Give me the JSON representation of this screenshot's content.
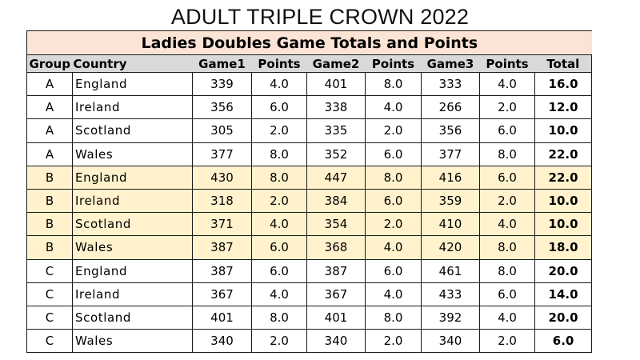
{
  "page": {
    "title": "ADULT TRIPLE CROWN 2022"
  },
  "table": {
    "caption": "Ladies Doubles Game Totals and Points",
    "headers": [
      "Group",
      "Country",
      "Game1",
      "Points",
      "Game2",
      "Points",
      "Game3",
      "Points",
      "Total"
    ],
    "rows": [
      [
        "A",
        "England",
        "339",
        "4.0",
        "401",
        "8.0",
        "333",
        "4.0",
        "16.0"
      ],
      [
        "A",
        "Ireland",
        "356",
        "6.0",
        "338",
        "4.0",
        "266",
        "2.0",
        "12.0"
      ],
      [
        "A",
        "Scotland",
        "305",
        "2.0",
        "335",
        "2.0",
        "356",
        "6.0",
        "10.0"
      ],
      [
        "A",
        "Wales",
        "377",
        "8.0",
        "352",
        "6.0",
        "377",
        "8.0",
        "22.0"
      ],
      [
        "B",
        "England",
        "430",
        "8.0",
        "447",
        "8.0",
        "416",
        "6.0",
        "22.0"
      ],
      [
        "B",
        "Ireland",
        "318",
        "2.0",
        "384",
        "6.0",
        "359",
        "2.0",
        "10.0"
      ],
      [
        "B",
        "Scotland",
        "371",
        "4.0",
        "354",
        "2.0",
        "410",
        "4.0",
        "10.0"
      ],
      [
        "B",
        "Wales",
        "387",
        "6.0",
        "368",
        "4.0",
        "420",
        "8.0",
        "18.0"
      ],
      [
        "C",
        "England",
        "387",
        "6.0",
        "387",
        "6.0",
        "461",
        "8.0",
        "20.0"
      ],
      [
        "C",
        "Ireland",
        "367",
        "4.0",
        "367",
        "4.0",
        "433",
        "6.0",
        "14.0"
      ],
      [
        "C",
        "Scotland",
        "401",
        "8.0",
        "401",
        "8.0",
        "392",
        "4.0",
        "20.0"
      ],
      [
        "C",
        "Wales",
        "340",
        "2.0",
        "340",
        "2.0",
        "340",
        "2.0",
        "6.0"
      ]
    ]
  },
  "colors": {
    "caption_fill": "#fbe4d5",
    "header_fill": "#d9d9d9",
    "group_b_fill": "#fff2cc",
    "border": "#1a1a1a"
  }
}
